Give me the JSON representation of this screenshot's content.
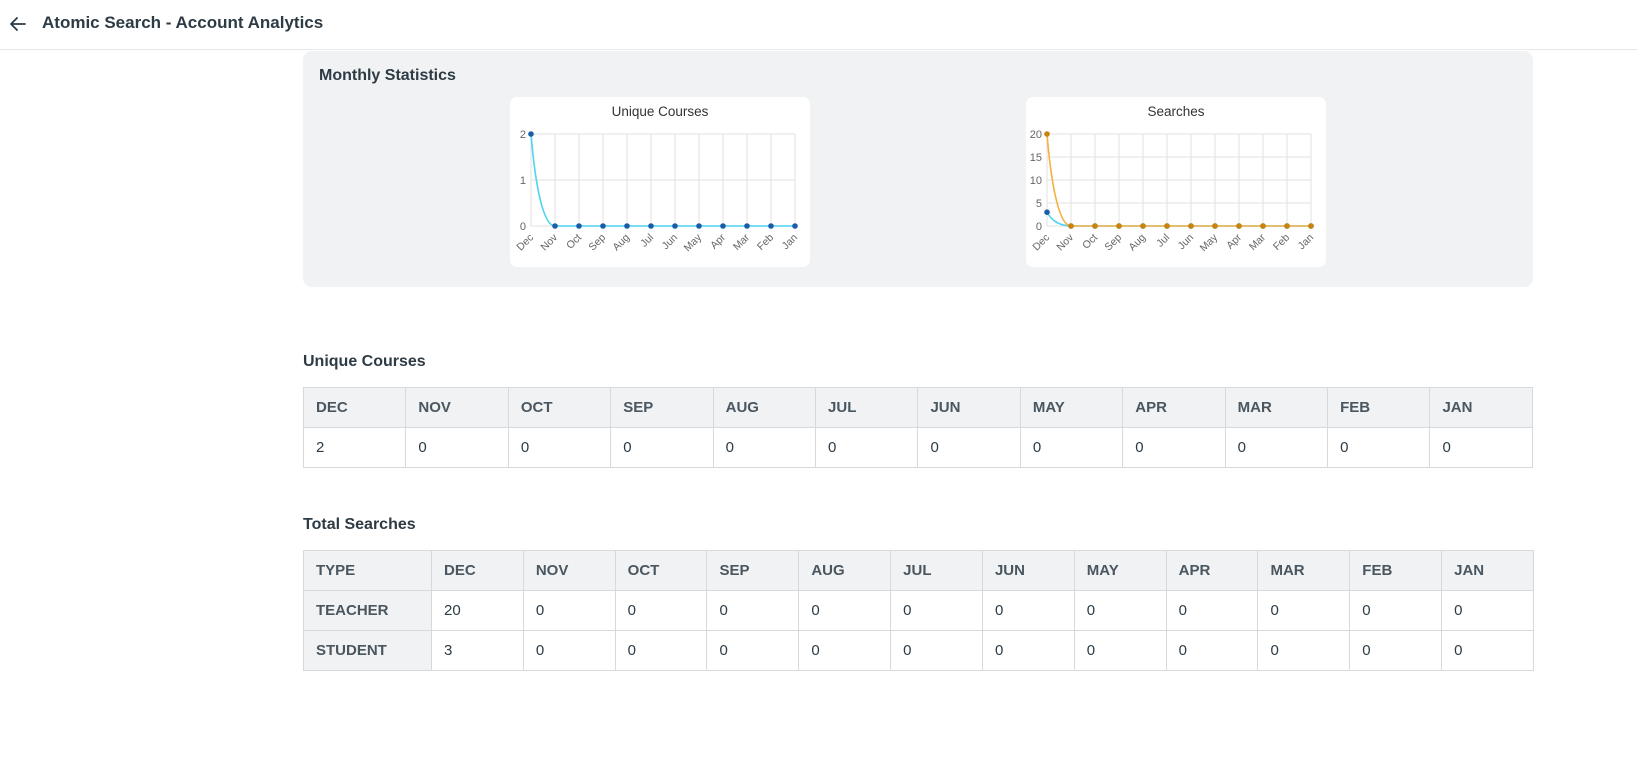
{
  "header": {
    "title": "Atomic Search - Account Analytics",
    "back_icon": "arrow-left-icon"
  },
  "monthly_statistics": {
    "title": "Monthly Statistics"
  },
  "chart_data": [
    {
      "type": "line",
      "title": "Unique Courses",
      "categories": [
        "Dec",
        "Nov",
        "Oct",
        "Sep",
        "Aug",
        "Jul",
        "Jun",
        "May",
        "Apr",
        "Mar",
        "Feb",
        "Jan"
      ],
      "series": [
        {
          "color": "#4dd4f2",
          "point_color": "#1a5ea8",
          "values": [
            2,
            0,
            0,
            0,
            0,
            0,
            0,
            0,
            0,
            0,
            0,
            0
          ]
        }
      ],
      "yticks": [
        "0",
        "1",
        "2"
      ],
      "ylim": [
        0,
        2
      ],
      "grid": true
    },
    {
      "type": "line",
      "title": "Searches",
      "categories": [
        "Dec",
        "Nov",
        "Oct",
        "Sep",
        "Aug",
        "Jul",
        "Jun",
        "May",
        "Apr",
        "Mar",
        "Feb",
        "Jan"
      ],
      "series": [
        {
          "color": "#4dd4f2",
          "point_color": "#1a5ea8",
          "values": [
            3,
            0,
            0,
            0,
            0,
            0,
            0,
            0,
            0,
            0,
            0,
            0
          ]
        },
        {
          "color": "#f5b041",
          "point_color": "#c9840e",
          "values": [
            20,
            0,
            0,
            0,
            0,
            0,
            0,
            0,
            0,
            0,
            0,
            0
          ]
        }
      ],
      "yticks": [
        "0",
        "5",
        "10",
        "15",
        "20"
      ],
      "ylim": [
        0,
        20
      ],
      "grid": true
    }
  ],
  "unique_courses": {
    "title": "Unique Courses",
    "headers": [
      "DEC",
      "NOV",
      "OCT",
      "SEP",
      "AUG",
      "JUL",
      "JUN",
      "MAY",
      "APR",
      "MAR",
      "FEB",
      "JAN"
    ],
    "values": [
      "2",
      "0",
      "0",
      "0",
      "0",
      "0",
      "0",
      "0",
      "0",
      "0",
      "0",
      "0"
    ]
  },
  "total_searches": {
    "title": "Total Searches",
    "headers": [
      "TYPE",
      "DEC",
      "NOV",
      "OCT",
      "SEP",
      "AUG",
      "JUL",
      "JUN",
      "MAY",
      "APR",
      "MAR",
      "FEB",
      "JAN"
    ],
    "rows": [
      {
        "type": "TEACHER",
        "values": [
          "20",
          "0",
          "0",
          "0",
          "0",
          "0",
          "0",
          "0",
          "0",
          "0",
          "0",
          "0"
        ]
      },
      {
        "type": "STUDENT",
        "values": [
          "3",
          "0",
          "0",
          "0",
          "0",
          "0",
          "0",
          "0",
          "0",
          "0",
          "0",
          "0"
        ]
      }
    ]
  }
}
